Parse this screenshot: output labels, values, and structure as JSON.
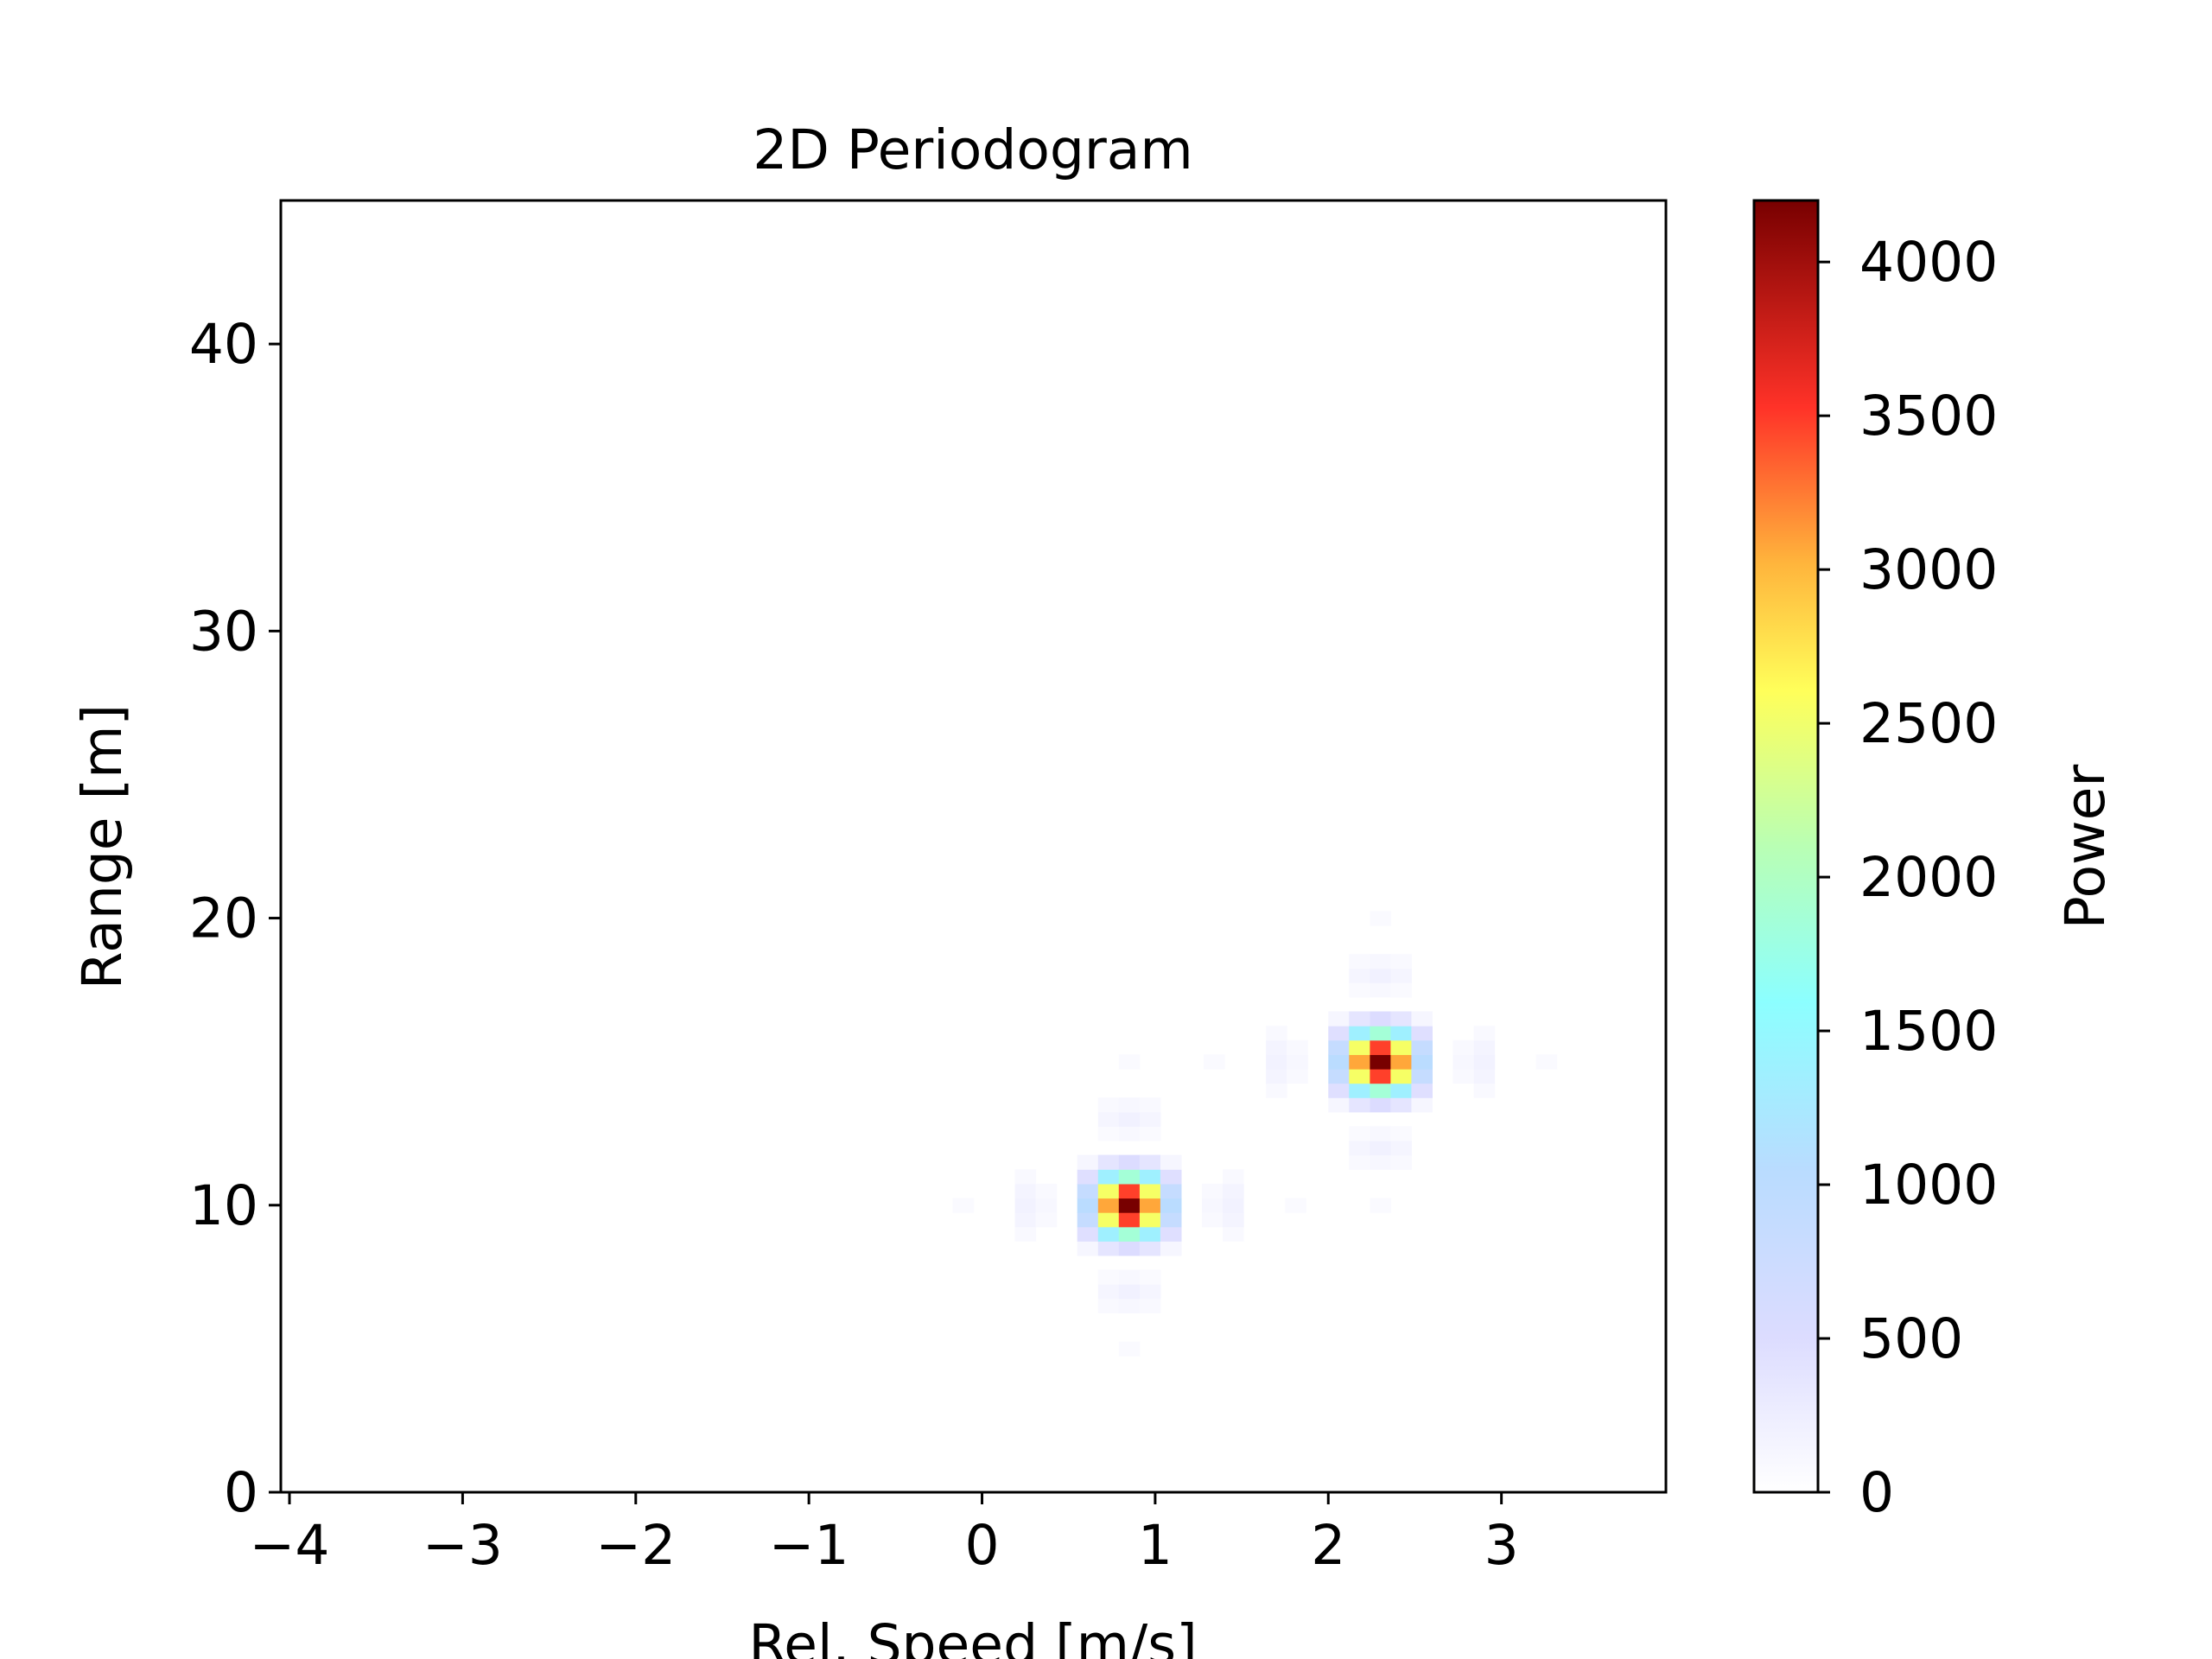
{
  "chart_data": {
    "type": "heatmap",
    "title": "2D Periodogram",
    "xlabel": "Rel. Speed [m/s]",
    "ylabel": "Range [m]",
    "xlim": [
      -4.05,
      3.95
    ],
    "ylim": [
      0,
      45
    ],
    "xticks": [
      -4,
      -3,
      -2,
      -1,
      0,
      1,
      2,
      3
    ],
    "xtick_labels": [
      "−4",
      "−3",
      "−2",
      "−1",
      "0",
      "1",
      "2",
      "3"
    ],
    "yticks": [
      0,
      10,
      20,
      30,
      40
    ],
    "ytick_labels": [
      "0",
      "10",
      "20",
      "30",
      "40"
    ],
    "colorbar": {
      "label": "Power",
      "range": [
        0,
        4200
      ],
      "ticks": [
        0,
        500,
        1000,
        1500,
        2000,
        2500,
        3000,
        3500,
        4000
      ],
      "tick_labels": [
        "0",
        "500",
        "1000",
        "1500",
        "2000",
        "2500",
        "3000",
        "3500",
        "4000"
      ],
      "colormap_stops": [
        {
          "v": 0.0,
          "color": "#ffffff"
        },
        {
          "v": 0.12,
          "color": "#dcdcff"
        },
        {
          "v": 0.25,
          "color": "#b9dcff"
        },
        {
          "v": 0.38,
          "color": "#8cffff"
        },
        {
          "v": 0.5,
          "color": "#b9ffb4"
        },
        {
          "v": 0.62,
          "color": "#ffff5a"
        },
        {
          "v": 0.72,
          "color": "#ffb43c"
        },
        {
          "v": 0.84,
          "color": "#ff3228"
        },
        {
          "v": 1.0,
          "color": "#780000"
        }
      ]
    },
    "grid": false,
    "peaks": [
      {
        "speed": 0.85,
        "range": 10,
        "power": 4200
      },
      {
        "speed": 2.3,
        "range": 15,
        "power": 4200
      }
    ]
  }
}
